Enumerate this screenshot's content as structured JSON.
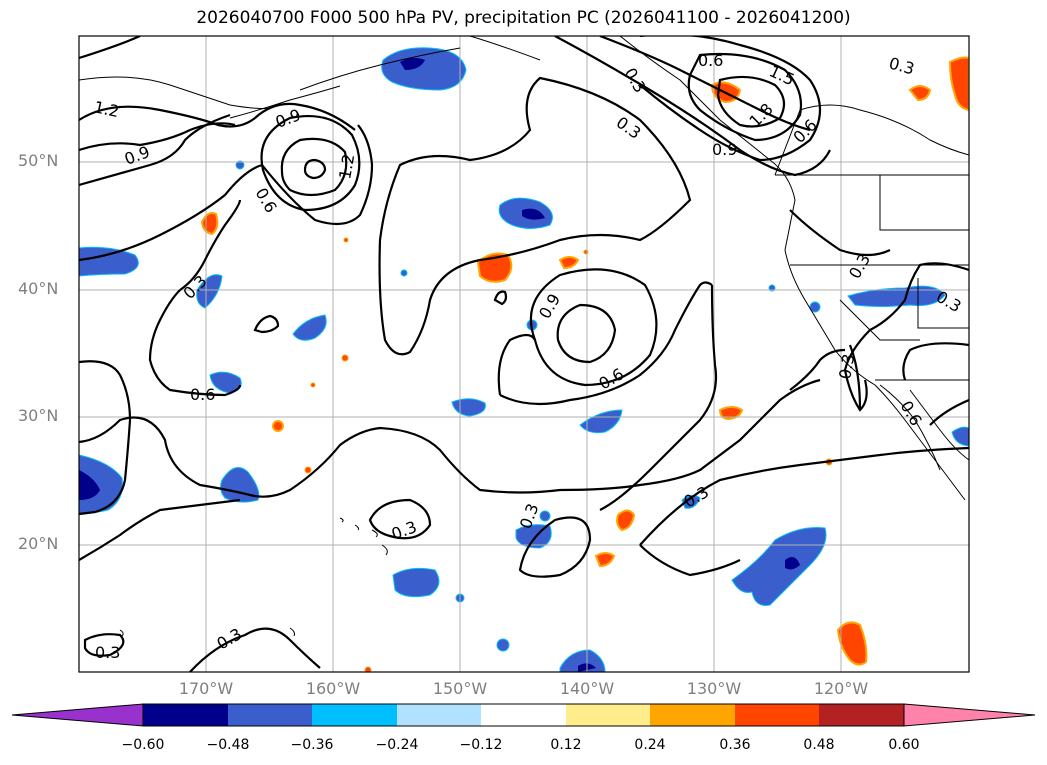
{
  "title": "2026040700 F000 500 hPa PV, precipitation PC (2026041100 - 2026041200)",
  "map": {
    "lat_labels": [
      "50°N",
      "40°N",
      "30°N",
      "20°N"
    ],
    "lon_labels": [
      "170°W",
      "160°W",
      "150°W",
      "140°W",
      "130°W",
      "120°W"
    ],
    "contour_labels": [
      "1.2",
      "0.9",
      "0.6",
      "0.3",
      "0.9",
      "1.2",
      "0.6",
      "0.3",
      "0.6",
      "0.3",
      "1.5",
      "1.8",
      "0.9",
      "0.3",
      "0.9",
      "0.6",
      "0.3",
      "0.6",
      "0.3",
      "0.3",
      "0.3",
      "0.3",
      "0.3",
      "0.3",
      "0.6",
      "0.3"
    ],
    "colors": {
      "contour": "#000000",
      "grid": "#b0b0b0",
      "coast": "#000000"
    }
  },
  "colorbar": {
    "tick_labels": [
      "−0.60",
      "−0.48",
      "−0.36",
      "−0.24",
      "−0.12",
      "0.12",
      "0.24",
      "0.36",
      "0.48",
      "0.60"
    ],
    "colors": [
      "#9932cc",
      "#00008b",
      "#3a5fcd",
      "#00bfff",
      "#b0e2ff",
      "#ffffff",
      "#ffec8b",
      "#ffa500",
      "#ff4500",
      "#b22222",
      "#ff82ab"
    ]
  }
}
